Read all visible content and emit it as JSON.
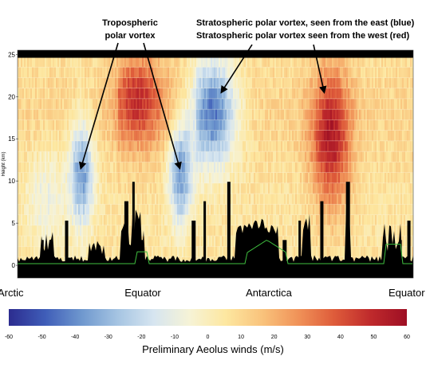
{
  "chart_data": {
    "type": "heatmap",
    "annotations": {
      "tropospheric": [
        "Tropospheric",
        "polar vortex"
      ],
      "stratospheric": [
        "Stratospheric polar vortex, seen from the east (blue)",
        "Stratospheric polar vortex seen from the west (red)"
      ]
    },
    "ylabel": "Height (km)",
    "y_ticks": [
      0,
      5,
      10,
      15,
      20,
      25
    ],
    "ylim": [
      -1.5,
      25.5
    ],
    "x_labels": [
      "Arctic",
      "Equator",
      "Antarctica",
      "Equator"
    ],
    "colorbar": {
      "label": "Preliminary Aeolus winds (m/s)",
      "ticks": [
        -60,
        -50,
        -40,
        -30,
        -20,
        -10,
        0,
        10,
        20,
        30,
        40,
        50,
        60
      ],
      "range": [
        -60,
        60
      ],
      "colors": [
        "#2c2c8f",
        "#3f5db8",
        "#6e97ce",
        "#a5c4e2",
        "#d6e5f0",
        "#f6f3d6",
        "#fde7a0",
        "#f9c37c",
        "#f09258",
        "#de5b3a",
        "#bf2a2c",
        "#9e0f24"
      ]
    },
    "orbit_x_range": [
      0,
      1
    ],
    "wind_features": [
      {
        "x": 0.16,
        "y": 11,
        "width": 0.03,
        "height": 6,
        "value": -45
      },
      {
        "x": 0.41,
        "y": 11,
        "width": 0.03,
        "height": 6,
        "value": -45
      },
      {
        "x": 0.49,
        "y": 18,
        "width": 0.06,
        "height": 6,
        "value": -55
      },
      {
        "x": 0.79,
        "y": 15,
        "width": 0.05,
        "height": 8,
        "value": 45
      },
      {
        "x": 0.3,
        "y": 20,
        "width": 0.06,
        "height": 5,
        "value": 30
      },
      {
        "x": 0.07,
        "y": 8,
        "width": 0.05,
        "height": 6,
        "value": -15
      }
    ],
    "vortex_markers": [
      {
        "label": "tropospheric",
        "x": 0.16,
        "y": 11.5
      },
      {
        "label": "tropospheric",
        "x": 0.41,
        "y": 11.5
      },
      {
        "label": "stratospheric",
        "x": 0.515,
        "y": 20.5
      },
      {
        "label": "stratospheric",
        "x": 0.775,
        "y": 20.5
      }
    ]
  }
}
